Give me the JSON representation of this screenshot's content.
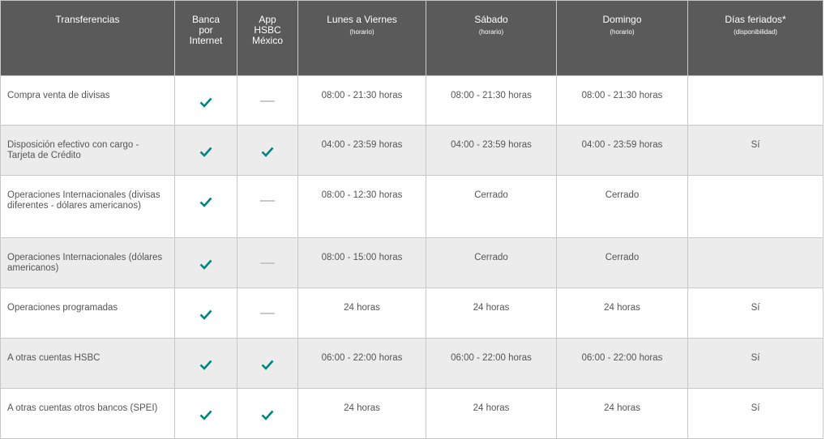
{
  "colors": {
    "header_bg": "#5a5a5a",
    "check": "#00847f",
    "dash": "#c8c8c8",
    "alt_row": "#ececec"
  },
  "headers": [
    {
      "label": "Transferencias",
      "sub": ""
    },
    {
      "label": "Banca por Internet",
      "sub": ""
    },
    {
      "label": "App HSBC México",
      "sub": ""
    },
    {
      "label": "Lunes a Viernes",
      "sub": "(horario)"
    },
    {
      "label": "Sábado",
      "sub": "(horario)"
    },
    {
      "label": "Domingo",
      "sub": "(horario)"
    },
    {
      "label": "Días feriados*",
      "sub": "(disponibilidad)"
    }
  ],
  "rows": [
    {
      "name": "Compra venta de divisas",
      "internet": "check-icon",
      "app": "dash-icon",
      "weekday": "08:00 - 21:30 horas",
      "saturday": "08:00 - 21:30 horas",
      "sunday": "08:00 - 21:30 horas",
      "holidays": ""
    },
    {
      "name": "Disposición efectivo con cargo - Tarjeta de Crédito",
      "internet": "check-icon",
      "app": "check-icon",
      "weekday": "04:00 - 23:59 horas",
      "saturday": "04:00 - 23:59 horas",
      "sunday": "04:00 - 23:59 horas",
      "holidays": "Sí"
    },
    {
      "name": "Operaciones Internacionales (divisas diferentes - dólares americanos)",
      "internet": "check-icon",
      "app": "dash-icon",
      "weekday": "08:00 - 12:30 horas",
      "saturday": "Cerrado",
      "sunday": "Cerrado",
      "holidays": ""
    },
    {
      "name": "Operaciones Internacionales (dólares americanos)",
      "internet": "check-icon",
      "app": "dash-icon",
      "weekday": "08:00 - 15:00 horas",
      "saturday": "Cerrado",
      "sunday": "Cerrado",
      "holidays": ""
    },
    {
      "name": "Operaciones programadas",
      "internet": "check-icon",
      "app": "dash-icon",
      "weekday": "24 horas",
      "saturday": "24 horas",
      "sunday": "24 horas",
      "holidays": "Sí"
    },
    {
      "name": "A otras cuentas HSBC",
      "internet": "check-icon",
      "app": "check-icon",
      "weekday": "06:00 - 22:00 horas",
      "saturday": "06:00 - 22:00 horas",
      "sunday": "06:00 - 22:00 horas",
      "holidays": "Sí"
    },
    {
      "name": "A otras cuentas otros bancos (SPEI)",
      "internet": "check-icon",
      "app": "check-icon",
      "weekday": "24 horas",
      "saturday": "24 horas",
      "sunday": "24 horas",
      "holidays": "Sí"
    }
  ]
}
